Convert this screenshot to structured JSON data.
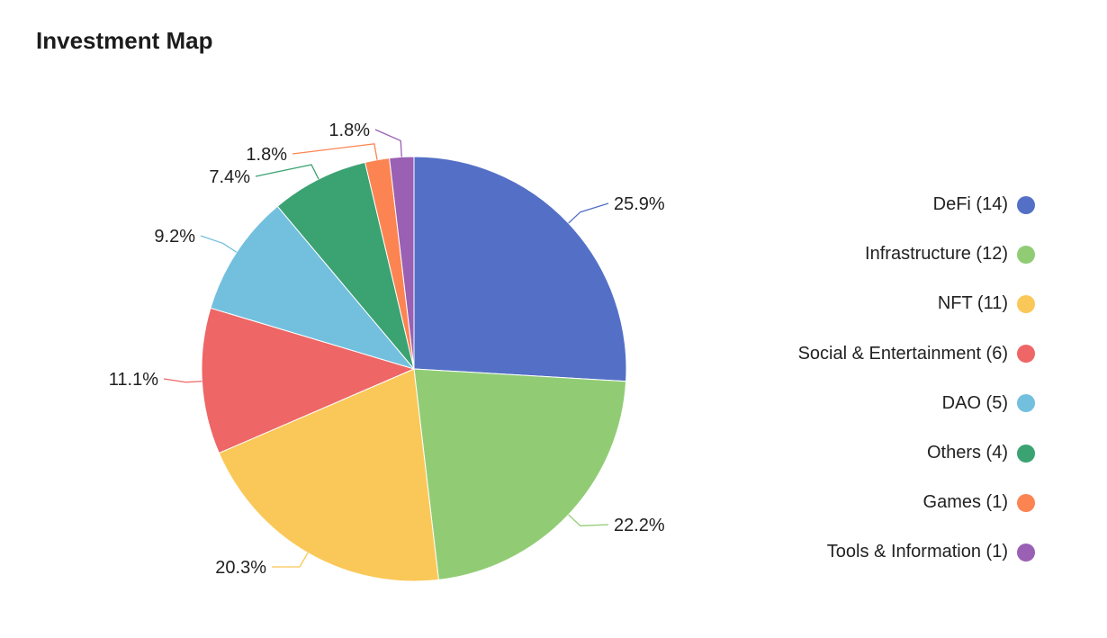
{
  "chart_data": {
    "type": "pie",
    "title": "Investment Map",
    "legend_position": "right",
    "slices": [
      {
        "name": "DeFi",
        "count": 14,
        "legend_label": "DeFi (14)",
        "percent": 25.9,
        "label": "25.9%",
        "color": "#5470c6"
      },
      {
        "name": "Infrastructure",
        "count": 12,
        "legend_label": "Infrastructure (12)",
        "percent": 22.2,
        "label": "22.2%",
        "color": "#91cc75"
      },
      {
        "name": "NFT",
        "count": 11,
        "legend_label": "NFT (11)",
        "percent": 20.3,
        "label": "20.3%",
        "color": "#fac858"
      },
      {
        "name": "Social & Entertainment",
        "count": 6,
        "legend_label": "Social & Entertainment (6)",
        "percent": 11.1,
        "label": "11.1%",
        "color": "#ee6666"
      },
      {
        "name": "DAO",
        "count": 5,
        "legend_label": "DAO (5)",
        "percent": 9.2,
        "label": "9.2%",
        "color": "#73c0de"
      },
      {
        "name": "Others",
        "count": 4,
        "legend_label": "Others (4)",
        "percent": 7.4,
        "label": "7.4%",
        "color": "#3ba272"
      },
      {
        "name": "Games",
        "count": 1,
        "legend_label": "Games (1)",
        "percent": 1.8,
        "label": "1.8%",
        "color": "#fc8452"
      },
      {
        "name": "Tools & Information",
        "count": 1,
        "legend_label": "Tools & Information (1)",
        "percent": 1.8,
        "label": "1.8%",
        "color": "#9a60b4"
      }
    ]
  }
}
